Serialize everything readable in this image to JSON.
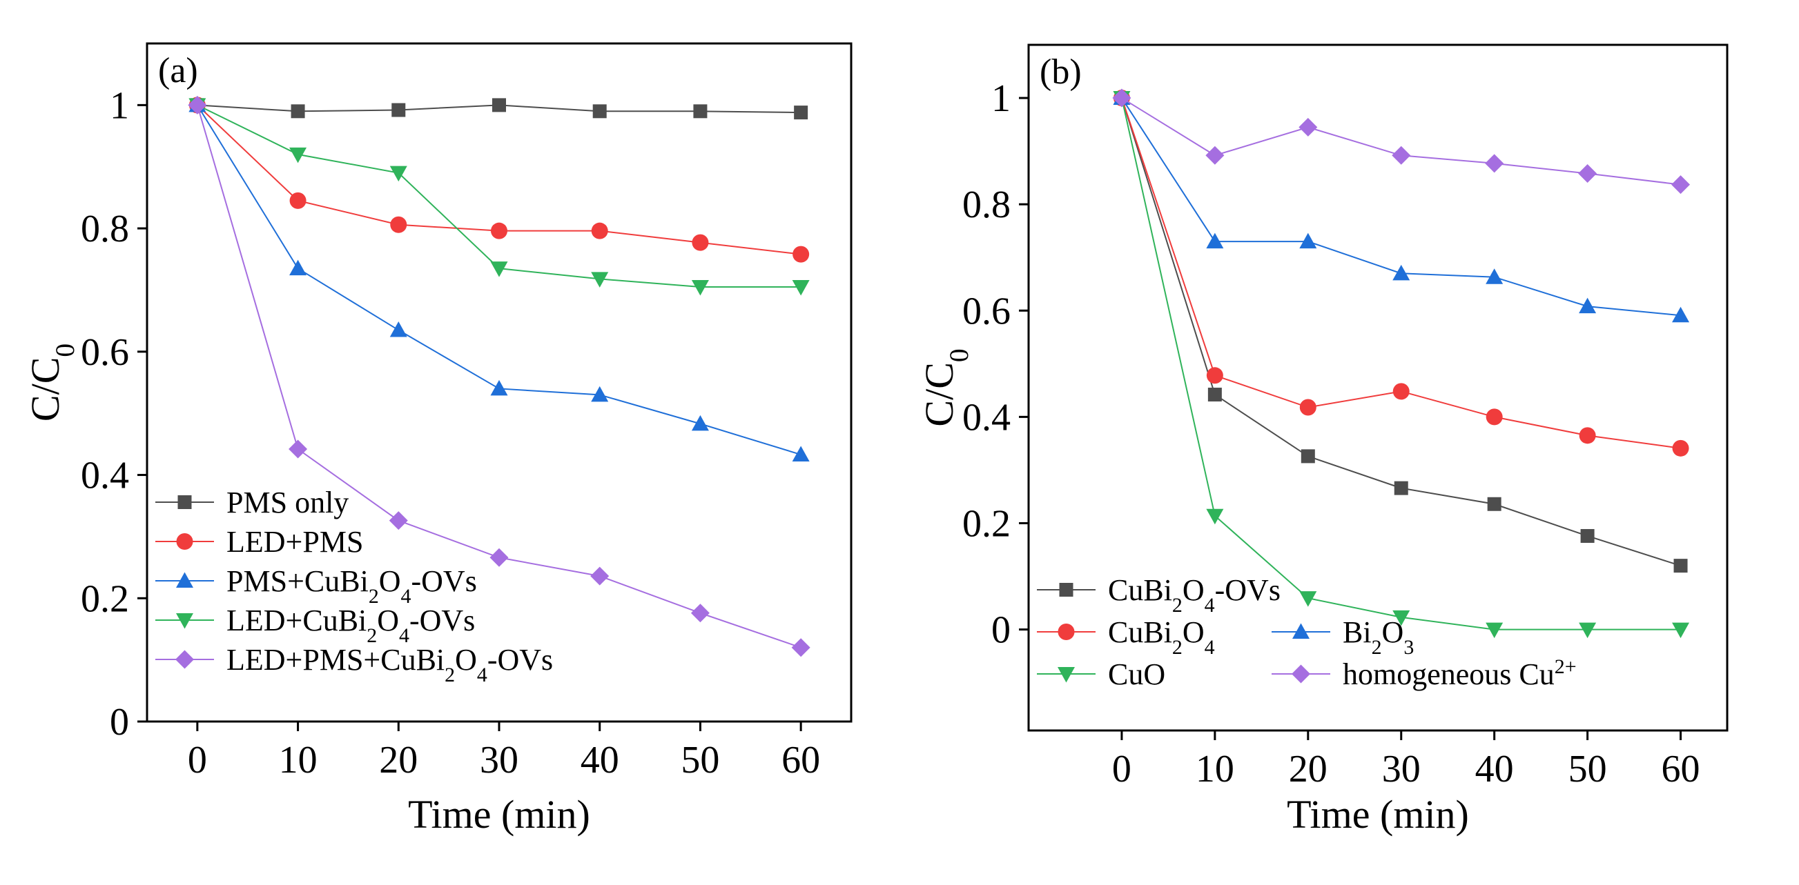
{
  "chart_data": [
    {
      "type": "line",
      "panel_label": "(a)",
      "xlabel": "Time (min)",
      "ylabel": {
        "base": "C/C",
        "sub": "0"
      },
      "xlim": [
        -5,
        65
      ],
      "ylim": [
        0,
        1.1
      ],
      "x_ticks": [
        0,
        10,
        20,
        30,
        40,
        50,
        60
      ],
      "x_tick_labels": [
        "0",
        "10",
        "20",
        "30",
        "40",
        "50",
        "60"
      ],
      "y_ticks": [
        0,
        0.2,
        0.4,
        0.6,
        0.8,
        1.0
      ],
      "y_tick_labels": [
        "0",
        "0.2",
        "0.4",
        "0.6",
        "0.8",
        "1"
      ],
      "legend_position": "bottom-left",
      "x": [
        0,
        10,
        20,
        30,
        40,
        50,
        60
      ],
      "series": [
        {
          "name": "PMS only",
          "label_parts": [
            [
              "PMS only",
              ""
            ]
          ],
          "color": "#4d4d4d",
          "marker": "square",
          "values": [
            1.0,
            0.99,
            0.992,
            1.0,
            0.99,
            0.99,
            0.988
          ]
        },
        {
          "name": "LED+PMS",
          "label_parts": [
            [
              "LED+PMS",
              ""
            ]
          ],
          "color": "#f03c3c",
          "marker": "circle",
          "values": [
            1.0,
            0.845,
            0.806,
            0.796,
            0.796,
            0.777,
            0.758
          ]
        },
        {
          "name": "PMS+CuBi2O4-OVs",
          "label_parts": [
            [
              "PMS+CuBi",
              ""
            ],
            [
              "2",
              "sub"
            ],
            [
              "O",
              ""
            ],
            [
              "4",
              "sub"
            ],
            [
              "-OVs",
              ""
            ]
          ],
          "color": "#1f6fd8",
          "marker": "triangle-up",
          "values": [
            1.0,
            0.735,
            0.635,
            0.54,
            0.53,
            0.483,
            0.433
          ]
        },
        {
          "name": "LED+CuBi2O4-OVs",
          "label_parts": [
            [
              "LED+CuBi",
              ""
            ],
            [
              "2",
              "sub"
            ],
            [
              "O",
              ""
            ],
            [
              "4",
              "sub"
            ],
            [
              "-OVs",
              ""
            ]
          ],
          "color": "#2fb35a",
          "marker": "triangle-down",
          "values": [
            1.0,
            0.92,
            0.89,
            0.735,
            0.718,
            0.705,
            0.705
          ]
        },
        {
          "name": "LED+PMS+CuBi2O4-OVs",
          "label_parts": [
            [
              "LED+PMS+CuBi",
              ""
            ],
            [
              "2",
              "sub"
            ],
            [
              "O",
              ""
            ],
            [
              "4",
              "sub"
            ],
            [
              "-OVs",
              ""
            ]
          ],
          "color": "#a56ee0",
          "marker": "diamond",
          "values": [
            1.0,
            0.442,
            0.326,
            0.266,
            0.236,
            0.176,
            0.12
          ]
        }
      ]
    },
    {
      "type": "line",
      "panel_label": "(b)",
      "xlabel": "Time (min)",
      "ylabel": {
        "base": "C/C",
        "sub": "0"
      },
      "xlim": [
        -10,
        65
      ],
      "ylim": [
        -0.19,
        1.1
      ],
      "x_ticks": [
        0,
        10,
        20,
        30,
        40,
        50,
        60
      ],
      "x_tick_labels": [
        "0",
        "10",
        "20",
        "30",
        "40",
        "50",
        "60"
      ],
      "y_ticks": [
        0,
        0.2,
        0.4,
        0.6,
        0.8,
        1.0
      ],
      "y_tick_labels": [
        "0",
        "0.2",
        "0.4",
        "0.6",
        "0.8",
        "1"
      ],
      "legend_position": "bottom-left",
      "x": [
        0,
        10,
        20,
        30,
        40,
        50,
        60
      ],
      "series": [
        {
          "name": "CuBi2O4-OVs",
          "label_parts": [
            [
              "CuBi",
              ""
            ],
            [
              "2",
              "sub"
            ],
            [
              "O",
              ""
            ],
            [
              "4",
              "sub"
            ],
            [
              "-OVs",
              ""
            ]
          ],
          "color": "#4d4d4d",
          "marker": "square",
          "values": [
            1.0,
            0.442,
            0.326,
            0.266,
            0.236,
            0.176,
            0.12
          ]
        },
        {
          "name": "CuBi2O4",
          "label_parts": [
            [
              "CuBi",
              ""
            ],
            [
              "2",
              "sub"
            ],
            [
              "O",
              ""
            ],
            [
              "4",
              "sub"
            ]
          ],
          "color": "#f03c3c",
          "marker": "circle",
          "values": [
            1.0,
            0.478,
            0.418,
            0.448,
            0.4,
            0.365,
            0.341
          ]
        },
        {
          "name": "Bi2O3",
          "label_parts": [
            [
              "Bi",
              ""
            ],
            [
              "2",
              "sub"
            ],
            [
              "O",
              ""
            ],
            [
              "3",
              "sub"
            ]
          ],
          "color": "#1f6fd8",
          "marker": "triangle-up",
          "values": [
            1.0,
            0.73,
            0.73,
            0.67,
            0.663,
            0.608,
            0.591
          ]
        },
        {
          "name": "CuO",
          "label_parts": [
            [
              "CuO",
              ""
            ]
          ],
          "color": "#2fb35a",
          "marker": "triangle-down",
          "values": [
            1.0,
            0.214,
            0.059,
            0.023,
            0.0,
            0.0,
            0.0
          ]
        },
        {
          "name": "homogeneous Cu2+",
          "label_parts": [
            [
              "homogeneous Cu",
              ""
            ],
            [
              "2+",
              "sup"
            ]
          ],
          "color": "#a56ee0",
          "marker": "diamond",
          "values": [
            1.0,
            0.892,
            0.945,
            0.892,
            0.877,
            0.858,
            0.837
          ]
        }
      ]
    }
  ]
}
